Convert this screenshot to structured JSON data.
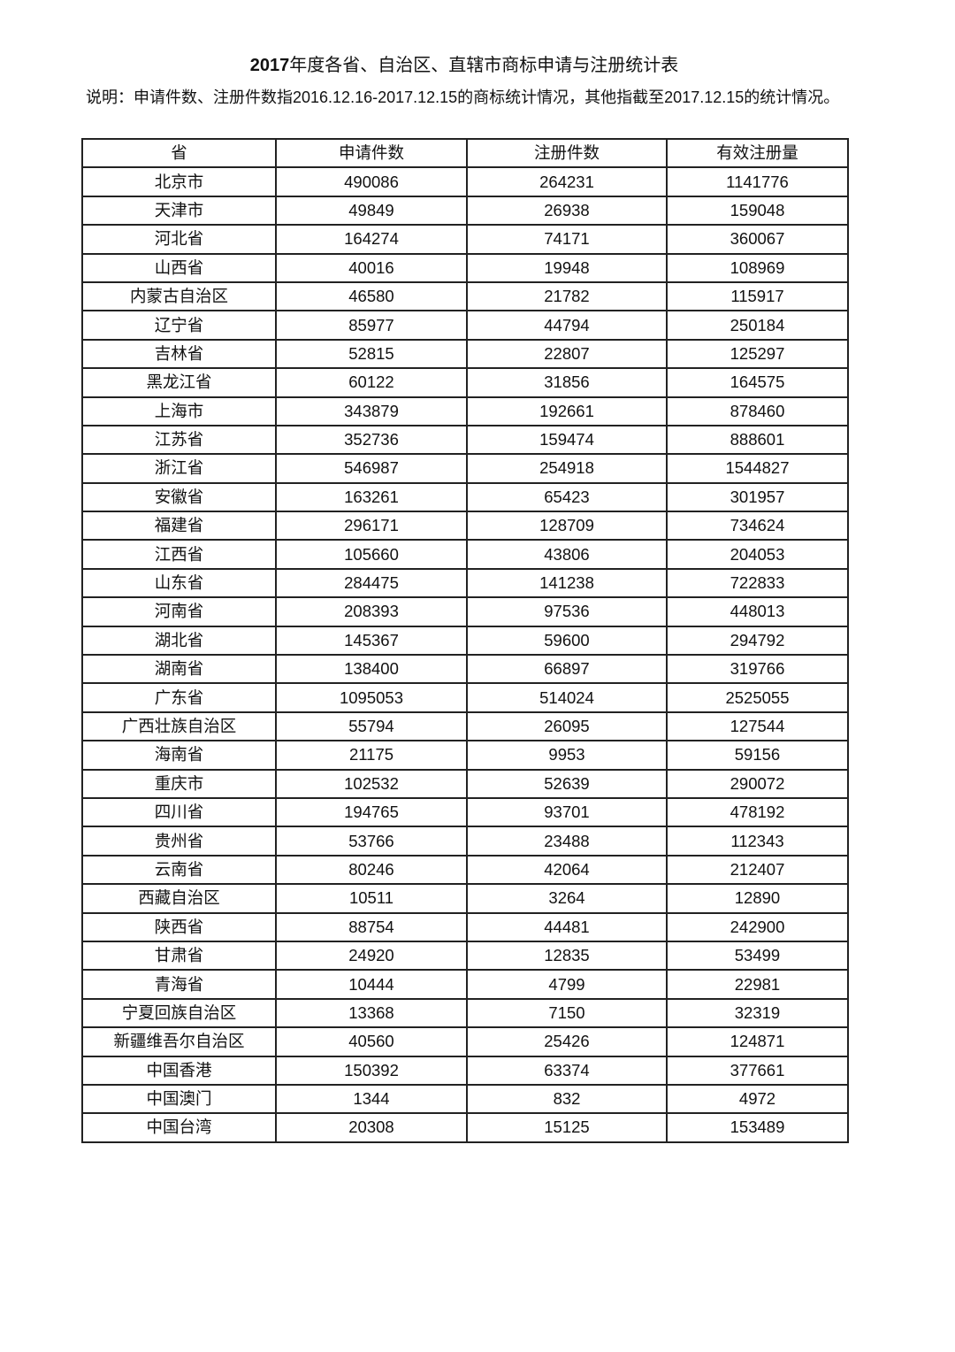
{
  "title": {
    "year": "2017",
    "rest": "年度各省、自治区、直辖市商标申请与注册统计表"
  },
  "note": "说明：申请件数、注册件数指2016.12.16-2017.12.15的商标统计情况，其他指截至2017.12.15的统计情况。",
  "table": {
    "headers": [
      "省",
      "申请件数",
      "注册件数",
      "有效注册量"
    ],
    "rows": [
      [
        "北京市",
        "490086",
        "264231",
        "1141776"
      ],
      [
        "天津市",
        "49849",
        "26938",
        "159048"
      ],
      [
        "河北省",
        "164274",
        "74171",
        "360067"
      ],
      [
        "山西省",
        "40016",
        "19948",
        "108969"
      ],
      [
        "内蒙古自治区",
        "46580",
        "21782",
        "115917"
      ],
      [
        "辽宁省",
        "85977",
        "44794",
        "250184"
      ],
      [
        "吉林省",
        "52815",
        "22807",
        "125297"
      ],
      [
        "黑龙江省",
        "60122",
        "31856",
        "164575"
      ],
      [
        "上海市",
        "343879",
        "192661",
        "878460"
      ],
      [
        "江苏省",
        "352736",
        "159474",
        "888601"
      ],
      [
        "浙江省",
        "546987",
        "254918",
        "1544827"
      ],
      [
        "安徽省",
        "163261",
        "65423",
        "301957"
      ],
      [
        "福建省",
        "296171",
        "128709",
        "734624"
      ],
      [
        "江西省",
        "105660",
        "43806",
        "204053"
      ],
      [
        "山东省",
        "284475",
        "141238",
        "722833"
      ],
      [
        "河南省",
        "208393",
        "97536",
        "448013"
      ],
      [
        "湖北省",
        "145367",
        "59600",
        "294792"
      ],
      [
        "湖南省",
        "138400",
        "66897",
        "319766"
      ],
      [
        "广东省",
        "1095053",
        "514024",
        "2525055"
      ],
      [
        "广西壮族自治区",
        "55794",
        "26095",
        "127544"
      ],
      [
        "海南省",
        "21175",
        "9953",
        "59156"
      ],
      [
        "重庆市",
        "102532",
        "52639",
        "290072"
      ],
      [
        "四川省",
        "194765",
        "93701",
        "478192"
      ],
      [
        "贵州省",
        "53766",
        "23488",
        "112343"
      ],
      [
        "云南省",
        "80246",
        "42064",
        "212407"
      ],
      [
        "西藏自治区",
        "10511",
        "3264",
        "12890"
      ],
      [
        "陕西省",
        "88754",
        "44481",
        "242900"
      ],
      [
        "甘肃省",
        "24920",
        "12835",
        "53499"
      ],
      [
        "青海省",
        "10444",
        "4799",
        "22981"
      ],
      [
        "宁夏回族自治区",
        "13368",
        "7150",
        "32319"
      ],
      [
        "新疆维吾尔自治区",
        "40560",
        "25426",
        "124871"
      ],
      [
        "中国香港",
        "150392",
        "63374",
        "377661"
      ],
      [
        "中国澳门",
        "1344",
        "832",
        "4972"
      ],
      [
        "中国台湾",
        "20308",
        "15125",
        "153489"
      ]
    ]
  }
}
